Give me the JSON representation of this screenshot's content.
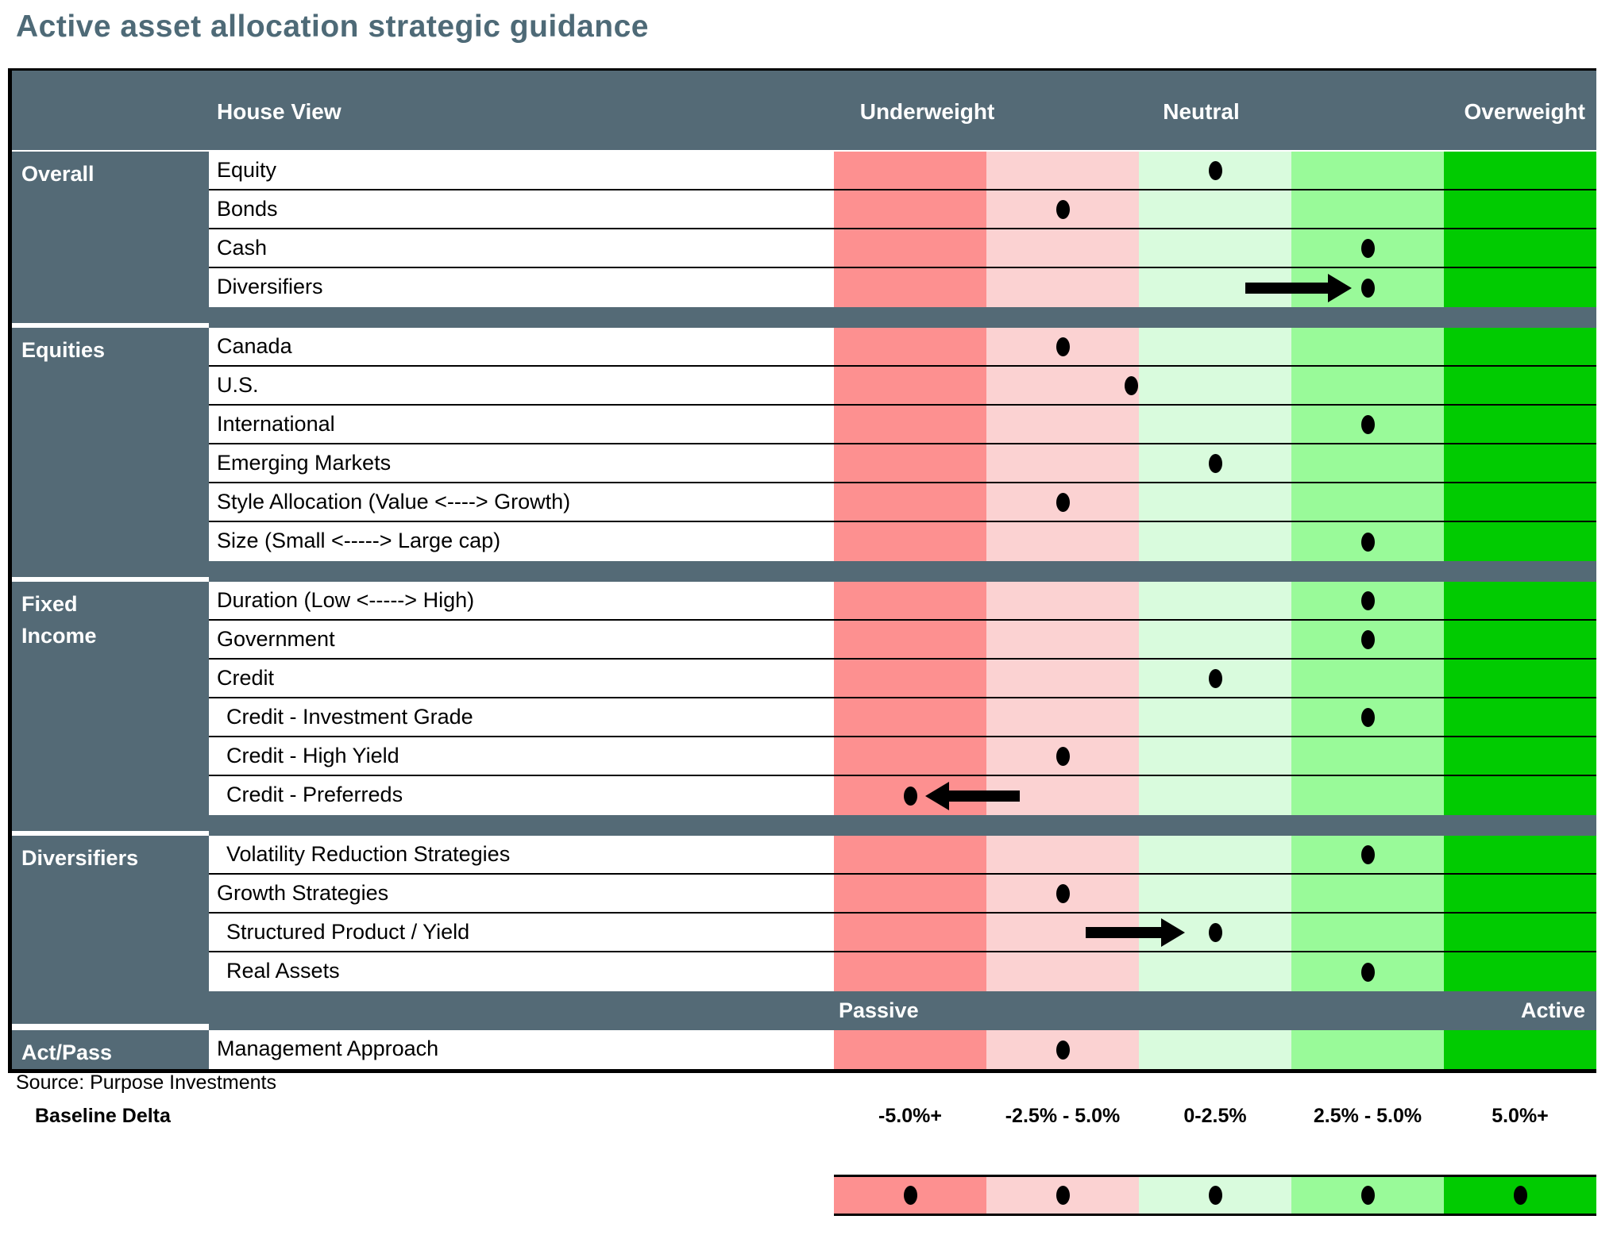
{
  "title": "Active asset allocation strategic guidance",
  "header": {
    "house_view": "House View",
    "underweight": "Underweight",
    "neutral": "Neutral",
    "overweight": "Overweight"
  },
  "passive_active": {
    "left": "Passive",
    "right": "Active"
  },
  "footer": {
    "source": "Source: Purpose Investments",
    "baseline_delta_label": "Baseline Delta",
    "baseline_delta_ranges": [
      "-5.0%+",
      "-2.5% - 5.0%",
      "0-2.5%",
      "2.5% - 5.0%",
      "5.0%+"
    ]
  },
  "colors": {
    "title": "#4E6A77",
    "slate": "#546A76",
    "dot": "#000000",
    "band": [
      "#FD9090",
      "#FBD2D2",
      "#D9FBDD",
      "#99FA99",
      "#01CB01"
    ]
  },
  "chart_data": {
    "type": "heatmap",
    "title": "Active asset allocation strategic guidance",
    "scale_headers": [
      "Underweight",
      "Neutral",
      "Overweight"
    ],
    "columns": [
      "-5.0%+",
      "-2.5% - 5.0%",
      "0-2.5%",
      "2.5% - 5.0%",
      "5.0%+"
    ],
    "column_colors": [
      "#FD9090",
      "#FBD2D2",
      "#D9FBDD",
      "#99FA99",
      "#01CB01"
    ],
    "sections": [
      {
        "name": "Overall",
        "name_lines": [
          "Overall"
        ],
        "rows": [
          {
            "label": "Equity",
            "position": 3
          },
          {
            "label": "Bonds",
            "position": 2
          },
          {
            "label": "Cash",
            "position": 4
          },
          {
            "label": "Diversifiers",
            "position": 4,
            "arrow": {
              "direction": "right",
              "tail": 3.2,
              "tip": 3.9
            }
          }
        ]
      },
      {
        "name": "Equities",
        "name_lines": [
          "Equities"
        ],
        "rows": [
          {
            "label": "Canada",
            "position": 2
          },
          {
            "label": "U.S.",
            "position": 2.45
          },
          {
            "label": "International",
            "position": 4
          },
          {
            "label": "Emerging Markets",
            "position": 3
          },
          {
            "label": "Style Allocation (Value <----> Growth)",
            "position": 2
          },
          {
            "label": "Size (Small <----->  Large cap)",
            "position": 4
          }
        ]
      },
      {
        "name": "Fixed Income",
        "name_lines": [
          "Fixed",
          "Income"
        ],
        "rows": [
          {
            "label": "Duration (Low <-----> High)",
            "position": 4
          },
          {
            "label": "Government",
            "position": 4
          },
          {
            "label": "Credit",
            "position": 3
          },
          {
            "label": "Credit - Investment Grade",
            "position": 4,
            "indent": true
          },
          {
            "label": "Credit - High Yield",
            "position": 2,
            "indent": true
          },
          {
            "label": "Credit - Preferreds",
            "position": 1,
            "indent": true,
            "arrow": {
              "direction": "left",
              "tail": 1.72,
              "tip": 1.1
            }
          }
        ]
      },
      {
        "name": "Diversifiers",
        "name_lines": [
          "Diversifiers"
        ],
        "rows": [
          {
            "label": "Volatility Reduction Strategies",
            "position": 4,
            "indent": true
          },
          {
            "label": "Growth Strategies",
            "position": 2
          },
          {
            "label": "Structured Product / Yield",
            "position": 3,
            "indent": true,
            "arrow": {
              "direction": "right",
              "tail": 2.15,
              "tip": 2.8
            }
          },
          {
            "label": "Real Assets",
            "position": 4,
            "indent": true
          }
        ]
      },
      {
        "name": "Act/Pass",
        "name_lines": [
          "Act/Pass"
        ],
        "rows": [
          {
            "label": "Management Approach",
            "position": 2
          }
        ]
      }
    ],
    "legend_positions": [
      1,
      2,
      3,
      4,
      5
    ]
  }
}
